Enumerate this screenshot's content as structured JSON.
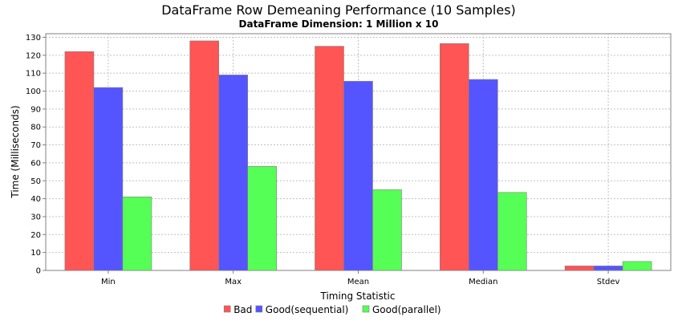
{
  "chart_data": {
    "type": "bar",
    "title": "DataFrame Row Demeaning Performance (10 Samples)",
    "subtitle": "DataFrame Dimension: 1 Million x 10",
    "xlabel": "Timing Statistic",
    "ylabel": "Time (Milliseconds)",
    "ylim": [
      0,
      132
    ],
    "yticks": [
      0,
      10,
      20,
      30,
      40,
      50,
      60,
      70,
      80,
      90,
      100,
      110,
      120,
      130
    ],
    "grid": true,
    "legend_position": "bottom",
    "categories": [
      "Min",
      "Max",
      "Mean",
      "Median",
      "Stdev"
    ],
    "series": [
      {
        "name": "Bad",
        "color": "#ff5555",
        "values": [
          122,
          128,
          125,
          126.5,
          2.5
        ]
      },
      {
        "name": "Good(sequential)",
        "color": "#5555ff",
        "values": [
          102,
          109,
          105.5,
          106.5,
          2.5
        ]
      },
      {
        "name": "Good(parallel)",
        "color": "#55ff55",
        "values": [
          41,
          58,
          45,
          43.5,
          5
        ]
      }
    ]
  }
}
